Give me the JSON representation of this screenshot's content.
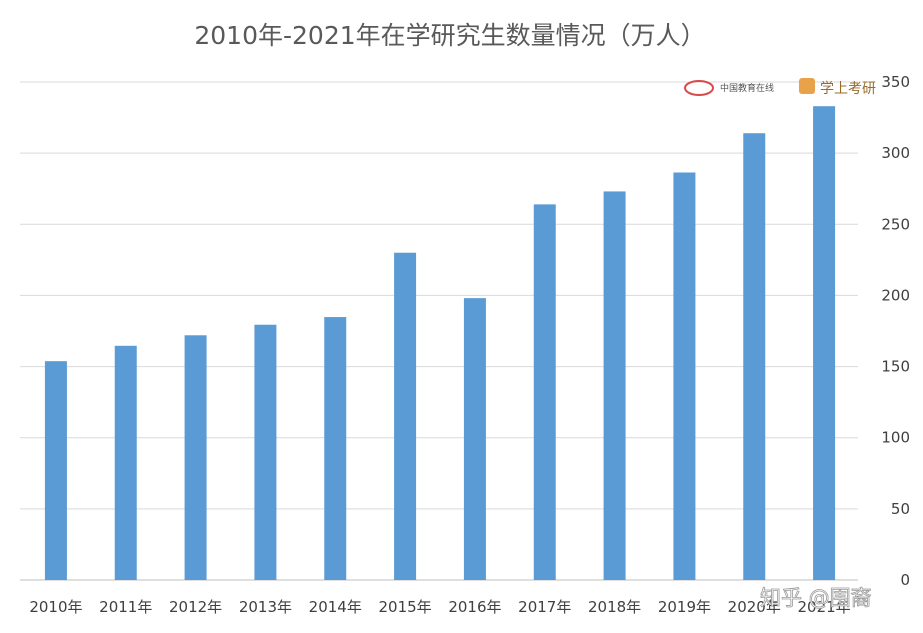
{
  "chart_data": {
    "type": "bar",
    "title": "2010年-2021年在学研究生数量情况（万人）",
    "categories": [
      "2010年",
      "2011年",
      "2012年",
      "2013年",
      "2014年",
      "2015年",
      "2016年",
      "2017年",
      "2018年",
      "2019年",
      "2020年",
      "2021年"
    ],
    "values": [
      153.8,
      164.6,
      172,
      179.4,
      184.8,
      230,
      198.1,
      264,
      273.1,
      286.4,
      314,
      333
    ],
    "ylim": [
      0,
      350
    ],
    "yticks": [
      0,
      50,
      100,
      150,
      200,
      250,
      300,
      350
    ],
    "yaxis_side": "right",
    "grid": true,
    "bar_color": "#5b9bd5"
  },
  "watermarks": {
    "eol_text": "中国教育在线",
    "kaoyan_text": "学上考研",
    "zhihu_text": "知乎 @围裔"
  }
}
